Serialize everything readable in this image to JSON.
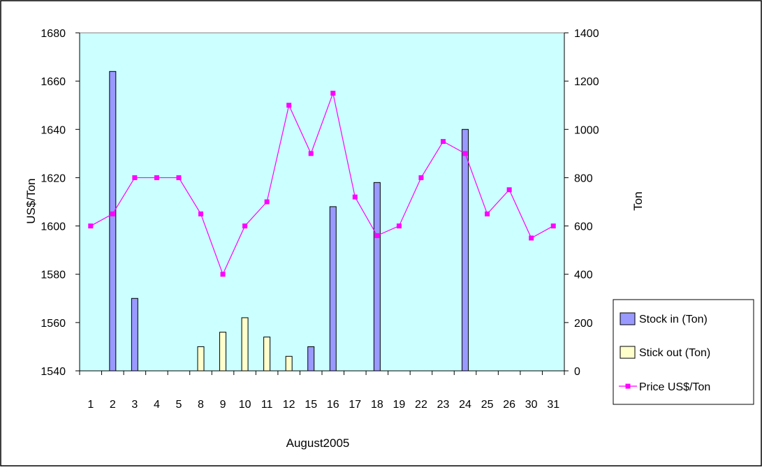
{
  "chart_data": {
    "type": "bar",
    "xlabel": "August2005",
    "ylabel_left": "US$/Ton",
    "ylabel_right": "Ton",
    "categories": [
      "1",
      "2",
      "3",
      "4",
      "5",
      "8",
      "9",
      "10",
      "11",
      "12",
      "15",
      "16",
      "17",
      "18",
      "19",
      "22",
      "23",
      "24",
      "25",
      "26",
      "30",
      "31"
    ],
    "ylim_left": [
      1540,
      1680
    ],
    "yticks_left": [
      1540,
      1560,
      1580,
      1600,
      1620,
      1640,
      1660,
      1680
    ],
    "ylim_right": [
      0,
      1400
    ],
    "yticks_right": [
      0,
      200,
      400,
      600,
      800,
      1000,
      1200,
      1400
    ],
    "legend_position": "right",
    "plot_background": "#ccffff",
    "series": [
      {
        "name": "Stock in (Ton)",
        "kind": "bar",
        "axis": "right",
        "color": "#9999ff",
        "values": [
          0,
          1240,
          300,
          0,
          0,
          0,
          0,
          0,
          0,
          0,
          100,
          680,
          0,
          780,
          0,
          0,
          0,
          1000,
          0,
          0,
          0,
          0
        ]
      },
      {
        "name": "Stick out (Ton)",
        "kind": "bar",
        "axis": "right",
        "color": "#ffffcc",
        "values": [
          0,
          0,
          0,
          0,
          0,
          100,
          160,
          220,
          140,
          60,
          0,
          0,
          0,
          0,
          0,
          0,
          0,
          0,
          0,
          0,
          0,
          0
        ]
      },
      {
        "name": "Price US$/Ton",
        "kind": "line",
        "axis": "left",
        "color": "#ff00ff",
        "values": [
          1600,
          1605,
          1620,
          1620,
          1620,
          1605,
          1580,
          1600,
          1610,
          1650,
          1630,
          1655,
          1612,
          1596,
          1600,
          1620,
          1635,
          1630,
          1605,
          1615,
          1595,
          1600
        ]
      }
    ]
  }
}
